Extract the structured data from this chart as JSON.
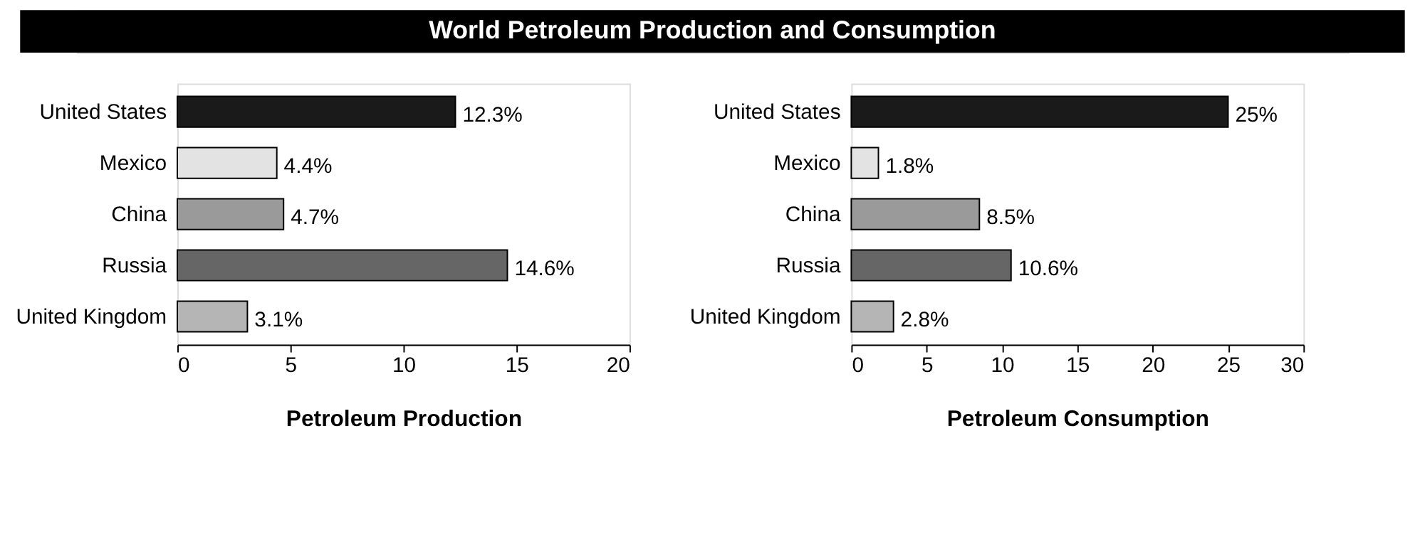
{
  "chart_data": [
    {
      "type": "bar",
      "orientation": "horizontal",
      "title": "World Petroleum Production and Consumption",
      "xlabel": "Petroleum Production",
      "categories": [
        "United States",
        "Mexico",
        "China",
        "Russia",
        "United Kingdom"
      ],
      "values": [
        12.3,
        4.4,
        4.7,
        14.6,
        3.1
      ],
      "colors": [
        "#1a1a1a",
        "#e3e3e3",
        "#9a9a9a",
        "#666666",
        "#b5b5b5"
      ],
      "value_labels": [
        "12.3%",
        "4.4%",
        "4.7%",
        "14.6%",
        "3.1%"
      ],
      "xlim": [
        0,
        20
      ],
      "xticks": [
        0,
        5,
        10,
        15,
        20
      ],
      "grid": false
    },
    {
      "type": "bar",
      "orientation": "horizontal",
      "xlabel": "Petroleum Consumption",
      "categories": [
        "United States",
        "Mexico",
        "China",
        "Russia",
        "United Kingdom"
      ],
      "values": [
        25,
        1.8,
        8.5,
        10.6,
        2.8
      ],
      "colors": [
        "#1a1a1a",
        "#e3e3e3",
        "#9a9a9a",
        "#666666",
        "#b5b5b5"
      ],
      "value_labels": [
        "25%",
        "1.8%",
        "8.5%",
        "10.6%",
        "2.8%"
      ],
      "xlim": [
        0,
        30
      ],
      "xticks": [
        0,
        5,
        10,
        15,
        20,
        25,
        30
      ],
      "grid": false
    }
  ]
}
